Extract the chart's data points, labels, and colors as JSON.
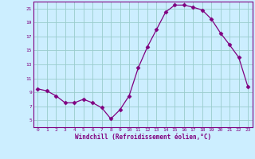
{
  "x": [
    0,
    1,
    2,
    3,
    4,
    5,
    6,
    7,
    8,
    9,
    10,
    11,
    12,
    13,
    14,
    15,
    16,
    17,
    18,
    19,
    20,
    21,
    22,
    23
  ],
  "y": [
    9.5,
    9.2,
    8.5,
    7.5,
    7.5,
    8.0,
    7.5,
    6.8,
    5.2,
    6.5,
    8.5,
    12.5,
    15.5,
    18.0,
    20.5,
    21.5,
    21.5,
    21.2,
    20.8,
    19.5,
    17.5,
    15.8,
    14.0,
    9.8
  ],
  "line_color": "#800080",
  "marker": "D",
  "marker_size": 2.5,
  "bg_color": "#cceeff",
  "grid_color": "#99cccc",
  "xlabel": "Windchill (Refroidissement éolien,°C)",
  "xlabel_color": "#800080",
  "tick_color": "#800080",
  "ylim": [
    4,
    22
  ],
  "yticks": [
    5,
    7,
    9,
    11,
    13,
    15,
    17,
    19,
    21
  ],
  "xlim": [
    -0.5,
    23.5
  ],
  "xticks": [
    0,
    1,
    2,
    3,
    4,
    5,
    6,
    7,
    8,
    9,
    10,
    11,
    12,
    13,
    14,
    15,
    16,
    17,
    18,
    19,
    20,
    21,
    22,
    23
  ]
}
